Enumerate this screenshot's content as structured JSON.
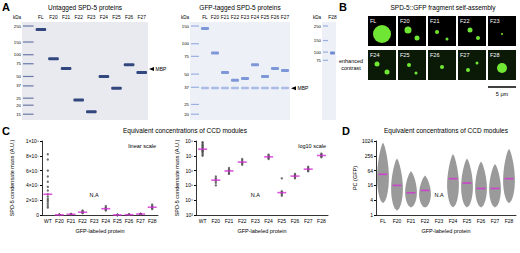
{
  "figure": {
    "A": {
      "label": "A",
      "gels": [
        {
          "title": "Untagged SPD-5 proteins",
          "unit": "kDa",
          "lanes": [
            "FL",
            "F20",
            "F21",
            "F22",
            "F23",
            "F24",
            "F25",
            "F26",
            "F27"
          ],
          "markers": [
            250,
            150,
            100,
            75,
            50,
            37,
            25,
            20,
            15
          ],
          "annotation": "MBP"
        },
        {
          "title": "GFP-tagged SPD-5 proteins",
          "unit": "kDa",
          "lanes": [
            "FL",
            "F20",
            "F21",
            "F22",
            "F23",
            "F24",
            "F25",
            "F26",
            "F27"
          ],
          "markers": [
            150,
            100,
            75,
            50,
            37,
            25,
            20
          ],
          "annotation": "MBP"
        },
        {
          "unit": "kDa",
          "lanes": [
            "F28"
          ],
          "markers": [
            250,
            150,
            100,
            75
          ]
        }
      ]
    },
    "B": {
      "label": "B",
      "title": "SPD-5::GFP fragment self-assembly",
      "rows": [
        [
          "FL",
          "F20",
          "F21",
          "F22",
          "F23"
        ],
        [
          "F24",
          "F25",
          "F26",
          "F27",
          "F28"
        ]
      ],
      "row_label": "enhanced contrast",
      "scale_bar": "5 μm"
    },
    "C": {
      "label": "C",
      "title": "Equivalent concentrations of CCD modules"
    },
    "D": {
      "label": "D",
      "title": "Equivalent concentrations of CCD modules"
    }
  },
  "chart_data": [
    {
      "type": "scatter",
      "subtitle": "linear scale",
      "y_label": "SPD-5 condensate mass (A.U.)",
      "x_label": "GFP-labeled protein",
      "categories": [
        "WT",
        "F20",
        "F21",
        "F22",
        "F23",
        "F24",
        "F25",
        "F26",
        "F27",
        "F28"
      ],
      "series": [
        {
          "color": "#4d4d4d",
          "marker": "circle",
          "values": [
            [
              82000000,
              75000000,
              60000000,
              52000000,
              45000000,
              38000000,
              33000000,
              28000000,
              25000000,
              22000000,
              20000000,
              18000000,
              15000000,
              12000000,
              10000000
            ],
            [
              400000,
              300000,
              250000,
              200000,
              150000,
              100000
            ],
            [
              1500000,
              1200000,
              1000000,
              900000,
              700000,
              600000
            ],
            [
              6000000,
              5000000,
              4000000,
              3500000,
              3000000,
              2500000
            ],
            [],
            [
              12000000,
              10000000,
              9000000,
              8000000,
              7000000,
              6000000
            ],
            [
              300000,
              40000,
              35000,
              30000,
              25000,
              20000
            ],
            [
              600000,
              500000,
              450000,
              400000,
              350000,
              300000
            ],
            [
              1800000,
              1500000,
              1300000,
              1200000,
              1000000,
              900000
            ],
            [
              14000000,
              12000000,
              11000000,
              10000000,
              9000000,
              8000000
            ]
          ]
        },
        {
          "type": "median",
          "color": "#d42fd4",
          "marker": "line",
          "values": [
            28000000,
            225000,
            950000,
            3750000,
            null,
            8500000,
            32500,
            425000,
            1250000,
            10500000
          ]
        }
      ],
      "annotations": [
        {
          "category": "F23",
          "text": "N.A"
        }
      ],
      "ylim": [
        0,
        100000000
      ],
      "yticks": [
        0,
        {
          "value": 20000000,
          "label": "2×10⁷"
        },
        {
          "value": 40000000,
          "label": "4×10⁷"
        },
        {
          "value": 60000000,
          "label": "6×10⁷"
        },
        {
          "value": 80000000,
          "label": "8×10⁷"
        },
        {
          "value": 100000000,
          "label": "1×10⁸"
        }
      ],
      "grid": false
    },
    {
      "type": "scatter",
      "subtitle": "log10 scale",
      "log": "y",
      "y_label": "SPD-5 condensate mass (A.U.)",
      "x_label": "GFP-labeled protein",
      "categories": [
        "WT",
        "F20",
        "F21",
        "F22",
        "F23",
        "F24",
        "F25",
        "F26",
        "F27",
        "F28"
      ],
      "series": [
        {
          "color": "#4d4d4d",
          "marker": "circle",
          "values": [
            [
              82000000,
              75000000,
              60000000,
              52000000,
              45000000,
              38000000,
              33000000,
              28000000,
              25000000,
              22000000,
              20000000,
              18000000,
              15000000,
              12000000,
              10000000
            ],
            [
              400000,
              300000,
              250000,
              200000,
              150000,
              100000
            ],
            [
              1500000,
              1200000,
              1000000,
              900000,
              700000,
              600000
            ],
            [
              6000000,
              5000000,
              4000000,
              3500000,
              3000000,
              2500000
            ],
            [],
            [
              12000000,
              10000000,
              9000000,
              8000000,
              7000000,
              6000000
            ],
            [
              300000,
              40000,
              35000,
              30000,
              25000,
              20000
            ],
            [
              600000,
              500000,
              450000,
              400000,
              350000,
              300000
            ],
            [
              1800000,
              1500000,
              1300000,
              1200000,
              1000000,
              900000
            ],
            [
              14000000,
              12000000,
              11000000,
              10000000,
              9000000,
              8000000
            ]
          ]
        },
        {
          "type": "median",
          "color": "#d42fd4",
          "marker": "line",
          "values": [
            28000000,
            225000,
            950000,
            3750000,
            null,
            8500000,
            32500,
            425000,
            1250000,
            10500000
          ]
        }
      ],
      "annotations": [
        {
          "category": "F23",
          "text": "N.A"
        }
      ],
      "ylim": [
        1000,
        100000000
      ],
      "yticks": [
        {
          "value": 1000,
          "label": "10³"
        },
        {
          "value": 10000,
          "label": "10⁴"
        },
        {
          "value": 100000,
          "label": "10⁵"
        },
        {
          "value": 1000000,
          "label": "10⁶"
        },
        {
          "value": 10000000,
          "label": "10⁷"
        },
        {
          "value": 100000000,
          "label": "10⁸"
        }
      ],
      "grid": false
    },
    {
      "type": "violin",
      "log": "y",
      "y_label": "PC (GFP)",
      "x_label": "GFP-labeled protein",
      "categories": [
        "FL",
        "F20",
        "F21",
        "F22",
        "F23",
        "F24",
        "F25",
        "F26",
        "F27",
        "F28"
      ],
      "series": [
        {
          "color": "#9a9a9a",
          "values": [
            [
              3,
              900
            ],
            [
              1.5,
              200
            ],
            [
              2,
              60
            ],
            [
              2,
              40
            ],
            null,
            [
              2,
              300
            ],
            [
              2,
              200
            ],
            [
              2,
              150
            ],
            [
              2,
              120
            ],
            [
              3,
              500
            ]
          ]
        },
        {
          "type": "median",
          "color": "#d42fd4",
          "marker": "line",
          "values": [
            45,
            16,
            8,
            10,
            null,
            30,
            20,
            12,
            12,
            30
          ]
        }
      ],
      "annotations": [
        {
          "category": "F23",
          "text": "N.A"
        }
      ],
      "ylim": [
        1,
        1024
      ],
      "yticks": [
        1,
        4,
        16,
        64,
        256,
        1024
      ],
      "grid": false
    }
  ]
}
